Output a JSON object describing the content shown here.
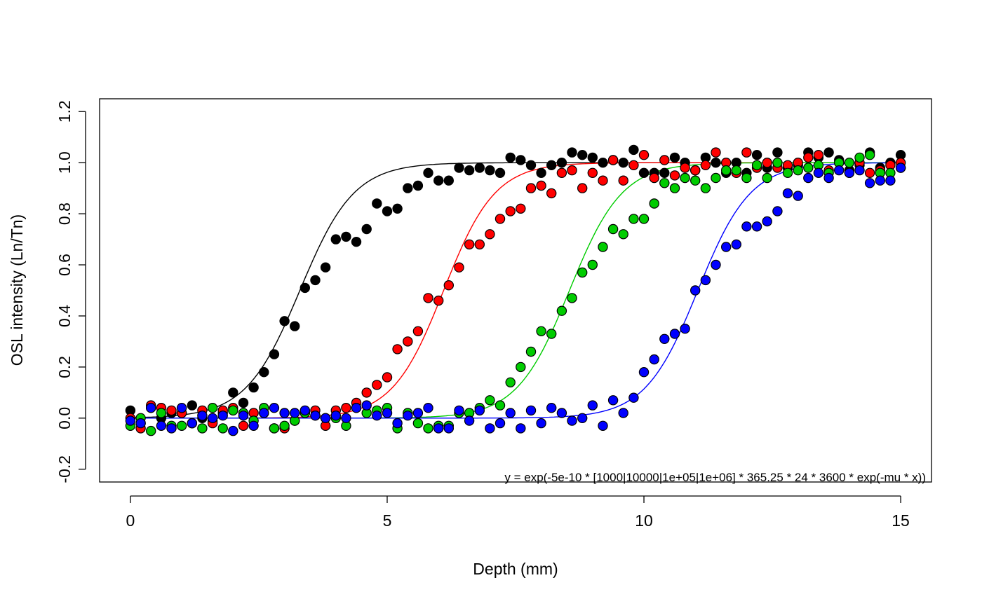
{
  "chart_data": {
    "type": "scatter",
    "title": "",
    "xlabel": "Depth (mm)",
    "ylabel": "OSL intensity (Ln/Tn)",
    "xlim": [
      -0.6,
      15.6
    ],
    "ylim": [
      -0.25,
      1.25
    ],
    "x_ticks": [
      0,
      5,
      10,
      15
    ],
    "x_tick_labels": [
      "0",
      "5",
      "10",
      "15"
    ],
    "y_ticks": [
      -0.2,
      0.0,
      0.2,
      0.4,
      0.6,
      0.8,
      1.0,
      1.2
    ],
    "y_tick_labels": [
      "-0.2",
      "0.0",
      "0.2",
      "0.4",
      "0.6",
      "0.8",
      "1.0",
      "1.2"
    ],
    "grid": false,
    "legend": "none",
    "annotation": "y = exp(-5e-10 * [1000|10000|1e+05|1e+06] * 365.25 * 24 * 3600 * exp(-mu * x))",
    "series": [
      {
        "color": "#000000",
        "fit_midpoint": 3.3,
        "fit_steepness": 1.9,
        "x": [
          0,
          0.2,
          0.4,
          0.6,
          0.8,
          1.0,
          1.2,
          1.4,
          1.6,
          1.8,
          2.0,
          2.2,
          2.4,
          2.6,
          2.8,
          3.0,
          3.2,
          3.4,
          3.6,
          3.8,
          4.0,
          4.2,
          4.4,
          4.6,
          4.8,
          5.0,
          5.2,
          5.4,
          5.6,
          5.8,
          6.0,
          6.2,
          6.4,
          6.6,
          6.8,
          7.0,
          7.2,
          7.4,
          7.6,
          7.8,
          8.0,
          8.2,
          8.4,
          8.6,
          8.8,
          9.0,
          9.2,
          9.4,
          9.6,
          9.8,
          10.0,
          10.2,
          10.4,
          10.6,
          10.8,
          11.0,
          11.2,
          11.4,
          11.6,
          11.8,
          12.0,
          12.2,
          12.4,
          12.6,
          12.8,
          13.0,
          13.2,
          13.4,
          13.6,
          13.8,
          14.0,
          14.2,
          14.4,
          14.6,
          14.8,
          15.0
        ],
        "y": [
          0.03,
          -0.02,
          0.04,
          0.0,
          0.02,
          0.02,
          0.05,
          0.0,
          -0.01,
          0.02,
          0.1,
          0.06,
          0.12,
          0.18,
          0.25,
          0.38,
          0.36,
          0.51,
          0.54,
          0.59,
          0.7,
          0.71,
          0.69,
          0.74,
          0.84,
          0.81,
          0.82,
          0.9,
          0.91,
          0.96,
          0.93,
          0.93,
          0.98,
          0.97,
          0.98,
          0.97,
          0.96,
          1.02,
          1.01,
          0.99,
          0.96,
          0.99,
          1.0,
          1.04,
          1.03,
          1.02,
          1.0,
          1.01,
          1.0,
          1.05,
          0.96,
          0.96,
          0.96,
          1.02,
          1.0,
          0.97,
          1.02,
          1.0,
          0.96,
          1.0,
          0.96,
          1.03,
          0.98,
          1.04,
          0.98,
          0.99,
          1.04,
          1.02,
          1.04,
          1.01,
          0.97,
          0.99,
          1.04,
          0.98,
          1.0,
          1.03
        ]
      },
      {
        "color": "#ff0000",
        "fit_midpoint": 6.1,
        "fit_steepness": 2.0,
        "x": [
          0,
          0.2,
          0.4,
          0.6,
          0.8,
          1.0,
          1.2,
          1.4,
          1.6,
          1.8,
          2.0,
          2.2,
          2.4,
          2.6,
          2.8,
          3.0,
          3.2,
          3.4,
          3.6,
          3.8,
          4.0,
          4.2,
          4.4,
          4.6,
          4.8,
          5.0,
          5.2,
          5.4,
          5.6,
          5.8,
          6.0,
          6.2,
          6.4,
          6.6,
          6.8,
          7.0,
          7.2,
          7.4,
          7.6,
          7.8,
          8.0,
          8.2,
          8.4,
          8.6,
          8.8,
          9.0,
          9.2,
          9.4,
          9.6,
          9.8,
          10.0,
          10.2,
          10.4,
          10.6,
          10.8,
          11.0,
          11.2,
          11.4,
          11.6,
          11.8,
          12.0,
          12.2,
          12.4,
          12.6,
          12.8,
          13.0,
          13.2,
          13.4,
          13.6,
          13.8,
          14.0,
          14.2,
          14.4,
          14.6,
          14.8,
          15.0
        ],
        "y": [
          0.0,
          -0.04,
          0.05,
          0.04,
          0.03,
          0.02,
          -0.02,
          0.03,
          -0.02,
          0.03,
          0.04,
          -0.03,
          0.02,
          0.02,
          -0.04,
          -0.04,
          -0.01,
          0.02,
          0.03,
          -0.03,
          0.03,
          0.04,
          0.06,
          0.1,
          0.13,
          0.16,
          0.27,
          0.3,
          0.34,
          0.47,
          0.46,
          0.52,
          0.59,
          0.68,
          0.68,
          0.72,
          0.78,
          0.81,
          0.82,
          0.9,
          0.91,
          0.88,
          0.96,
          0.97,
          0.9,
          0.96,
          0.93,
          1.01,
          0.93,
          0.99,
          1.03,
          0.94,
          1.01,
          0.95,
          0.98,
          0.97,
          0.99,
          1.04,
          1.0,
          0.96,
          1.04,
          0.98,
          1.0,
          0.98,
          0.99,
          1.0,
          1.02,
          1.03,
          0.97,
          1.0,
          0.96,
          1.0,
          0.96,
          0.97,
          0.99,
          1.0
        ]
      },
      {
        "color": "#00cc00",
        "fit_midpoint": 8.55,
        "fit_steepness": 1.95,
        "x": [
          0,
          0.2,
          0.4,
          0.6,
          0.8,
          1.0,
          1.2,
          1.4,
          1.6,
          1.8,
          2.0,
          2.2,
          2.4,
          2.6,
          2.8,
          3.0,
          3.2,
          3.4,
          3.6,
          3.8,
          4.0,
          4.2,
          4.4,
          4.6,
          4.8,
          5.0,
          5.2,
          5.4,
          5.6,
          5.8,
          6.0,
          6.2,
          6.4,
          6.6,
          6.8,
          7.0,
          7.2,
          7.4,
          7.6,
          7.8,
          8.0,
          8.2,
          8.4,
          8.6,
          8.8,
          9.0,
          9.2,
          9.4,
          9.6,
          9.8,
          10.0,
          10.2,
          10.4,
          10.6,
          10.8,
          11.0,
          11.2,
          11.4,
          11.6,
          11.8,
          12.0,
          12.2,
          12.4,
          12.6,
          12.8,
          13.0,
          13.2,
          13.4,
          13.6,
          13.8,
          14.0,
          14.2,
          14.4,
          14.6,
          14.8,
          15.0
        ],
        "y": [
          -0.03,
          0.0,
          -0.05,
          0.02,
          -0.03,
          -0.03,
          -0.02,
          -0.04,
          0.04,
          -0.04,
          0.03,
          0.02,
          -0.01,
          0.04,
          -0.04,
          -0.03,
          -0.01,
          0.02,
          0.01,
          0.0,
          0.0,
          -0.03,
          0.04,
          0.02,
          0.03,
          0.04,
          -0.04,
          0.02,
          -0.02,
          -0.04,
          -0.03,
          -0.03,
          0.02,
          0.02,
          0.04,
          0.07,
          0.05,
          0.14,
          0.2,
          0.26,
          0.34,
          0.33,
          0.42,
          0.47,
          0.57,
          0.6,
          0.67,
          0.74,
          0.72,
          0.78,
          0.78,
          0.84,
          0.92,
          0.9,
          0.94,
          0.93,
          0.9,
          0.94,
          0.97,
          0.97,
          0.94,
          0.99,
          0.94,
          1.0,
          0.96,
          0.97,
          0.98,
          0.99,
          0.96,
          1.0,
          1.0,
          1.02,
          1.03,
          0.96,
          0.96,
          0.98
        ]
      },
      {
        "color": "#0000ff",
        "fit_midpoint": 11.05,
        "fit_steepness": 1.95,
        "x": [
          0,
          0.2,
          0.4,
          0.6,
          0.8,
          1.0,
          1.2,
          1.4,
          1.6,
          1.8,
          2.0,
          2.2,
          2.4,
          2.6,
          2.8,
          3.0,
          3.2,
          3.4,
          3.6,
          3.8,
          4.0,
          4.2,
          4.4,
          4.6,
          4.8,
          5.0,
          5.2,
          5.4,
          5.6,
          5.8,
          6.0,
          6.2,
          6.4,
          6.6,
          6.8,
          7.0,
          7.2,
          7.4,
          7.6,
          7.8,
          8.0,
          8.2,
          8.4,
          8.6,
          8.8,
          9.0,
          9.2,
          9.4,
          9.6,
          9.8,
          10.0,
          10.2,
          10.4,
          10.6,
          10.8,
          11.0,
          11.2,
          11.4,
          11.6,
          11.8,
          12.0,
          12.2,
          12.4,
          12.6,
          12.8,
          13.0,
          13.2,
          13.4,
          13.6,
          13.8,
          14.0,
          14.2,
          14.4,
          14.6,
          14.8,
          15.0
        ],
        "y": [
          -0.01,
          -0.02,
          0.04,
          -0.03,
          -0.04,
          0.04,
          -0.02,
          0.01,
          0.0,
          0.01,
          -0.05,
          0.01,
          -0.03,
          0.02,
          0.04,
          0.02,
          0.02,
          0.03,
          0.01,
          0.0,
          0.01,
          0.0,
          0.04,
          0.05,
          0.01,
          0.02,
          -0.02,
          0.01,
          0.02,
          0.04,
          -0.04,
          -0.04,
          0.03,
          -0.01,
          0.03,
          -0.04,
          -0.02,
          0.02,
          -0.04,
          0.03,
          -0.02,
          0.04,
          0.02,
          -0.01,
          0.0,
          0.05,
          -0.03,
          0.07,
          0.02,
          0.08,
          0.18,
          0.23,
          0.31,
          0.33,
          0.35,
          0.5,
          0.54,
          0.6,
          0.67,
          0.68,
          0.75,
          0.75,
          0.77,
          0.81,
          0.88,
          0.87,
          0.94,
          0.96,
          0.94,
          0.97,
          0.96,
          0.97,
          0.92,
          0.93,
          0.93,
          0.98
        ]
      }
    ]
  }
}
